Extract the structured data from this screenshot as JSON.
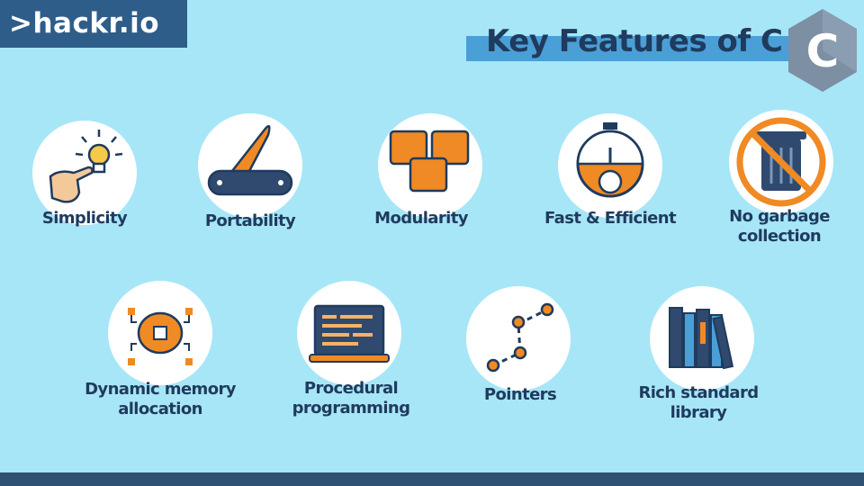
{
  "brand": {
    "logo_text": ">hackr.io"
  },
  "header": {
    "title": "Key Features of C",
    "badge_letter": "C"
  },
  "features": [
    {
      "label": "Simplicity",
      "icon": "pointing-hand-lightbulb-icon"
    },
    {
      "label": "Portability",
      "icon": "pocket-knife-icon"
    },
    {
      "label": "Modularity",
      "icon": "modules-blocks-icon"
    },
    {
      "label": "Fast & Efficient",
      "icon": "stopwatch-gear-icon"
    },
    {
      "label": "No garbage collection",
      "label_line1": "No garbage",
      "label_line2": "collection",
      "icon": "no-trash-can-icon"
    },
    {
      "label": "Dynamic memory allocation",
      "label_line1": "Dynamic memory",
      "label_line2": "allocation",
      "icon": "brain-chip-icon"
    },
    {
      "label": "Procedural programming",
      "label_line1": "Procedural",
      "label_line2": "programming",
      "icon": "code-window-icon"
    },
    {
      "label": "Pointers",
      "icon": "connected-points-icon"
    },
    {
      "label": "Rich standard library",
      "label_line1": "Rich standard",
      "label_line2": "library",
      "icon": "bookshelf-icon"
    }
  ],
  "colors": {
    "background": "#a7e6f7",
    "navy": "#1f3b5e",
    "orange": "#f08a24",
    "logo_bg": "#2f5d8a",
    "title_bar": "#4a9fd6"
  }
}
